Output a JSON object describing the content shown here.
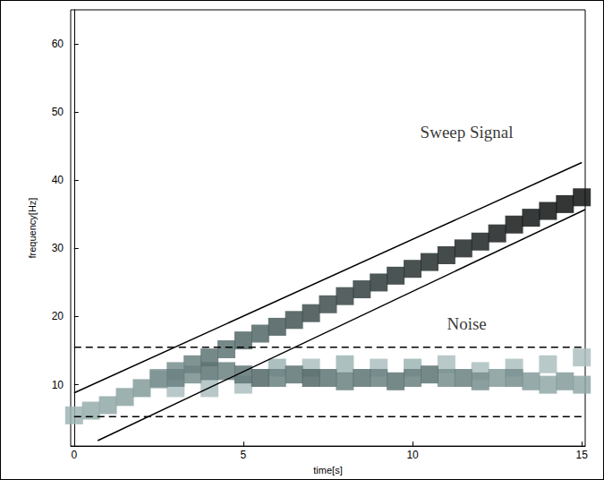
{
  "chart_data": {
    "type": "heatmap",
    "xlabel": "time[s]",
    "ylabel": "frequency[Hz]",
    "xlim": [
      -0.1,
      15.1
    ],
    "ylim": [
      1,
      65
    ],
    "xticks": [
      0,
      5,
      10,
      15
    ],
    "yticks": [
      10,
      20,
      30,
      40,
      50,
      60
    ],
    "grid": false,
    "intensity_range": [
      0,
      1
    ],
    "cells": {
      "t": [
        0,
        0.5,
        1,
        1.5,
        2,
        2.5,
        3,
        3.5,
        4,
        4.5,
        5,
        5.5,
        6,
        6.5,
        7,
        7.5,
        8,
        8.5,
        9,
        9.5,
        10,
        10.5,
        11,
        11.5,
        12,
        12.5,
        13,
        13.5,
        14,
        14.5,
        15,
        2.5,
        3,
        3.5,
        4,
        4.5,
        5,
        5.5,
        6,
        6.5,
        7,
        7.5,
        8,
        8.5,
        9,
        9.5,
        10,
        10.5,
        11,
        11.5,
        12,
        12.5,
        13,
        13.5,
        14,
        14.5,
        15,
        3,
        4,
        5,
        6,
        7,
        8,
        9,
        10,
        11,
        12,
        13,
        14,
        15
      ],
      "f": [
        5.5,
        6.2,
        7,
        8.2,
        9.5,
        10.8,
        12,
        13,
        14,
        15.2,
        16.5,
        17.5,
        18.5,
        19.5,
        20.5,
        21.8,
        23,
        24,
        25,
        26,
        27,
        28,
        29,
        30,
        31,
        32.2,
        33.5,
        34.5,
        35.5,
        36.5,
        37.5,
        11,
        11,
        11.5,
        12,
        12,
        11.5,
        11,
        11,
        11.5,
        11,
        11,
        10.5,
        11,
        11,
        10.5,
        11,
        11.5,
        11,
        11,
        10.5,
        11,
        11,
        10.5,
        10,
        10.5,
        10,
        9.5,
        9.5,
        10,
        12.5,
        12.5,
        13,
        12.5,
        12.5,
        13,
        12,
        12.5,
        13,
        14
      ],
      "intensity": [
        0.25,
        0.28,
        0.3,
        0.32,
        0.35,
        0.38,
        0.4,
        0.45,
        0.5,
        0.5,
        0.55,
        0.55,
        0.6,
        0.62,
        0.65,
        0.65,
        0.68,
        0.7,
        0.72,
        0.74,
        0.75,
        0.78,
        0.8,
        0.82,
        0.85,
        0.87,
        0.9,
        0.92,
        0.94,
        0.95,
        0.95,
        0.35,
        0.45,
        0.4,
        0.5,
        0.45,
        0.5,
        0.55,
        0.45,
        0.5,
        0.55,
        0.5,
        0.45,
        0.5,
        0.45,
        0.5,
        0.45,
        0.5,
        0.4,
        0.45,
        0.4,
        0.35,
        0.4,
        0.35,
        0.3,
        0.35,
        0.3,
        0.2,
        0.2,
        0.2,
        0.25,
        0.2,
        0.25,
        0.2,
        0.25,
        0.2,
        0.2,
        0.2,
        0.2,
        0.2
      ]
    },
    "annotation_lines": [
      {
        "points": [
          [
            0,
            8.8
          ],
          [
            15,
            42.6
          ]
        ],
        "line_style": "solid"
      },
      {
        "points": [
          [
            0.7,
            1.8
          ],
          [
            15.1,
            35.7
          ]
        ],
        "line_style": "solid"
      },
      {
        "points": [
          [
            0,
            15.5
          ],
          [
            15,
            15.5
          ]
        ],
        "line_style": "dashed"
      },
      {
        "points": [
          [
            0,
            5.3
          ],
          [
            15,
            5.3
          ]
        ],
        "line_style": "dashed"
      }
    ],
    "annotations": [
      {
        "text": "Sweep Signal",
        "x": 11.6,
        "y": 47
      },
      {
        "text": "Noise",
        "x": 11.6,
        "y": 19
      }
    ]
  }
}
